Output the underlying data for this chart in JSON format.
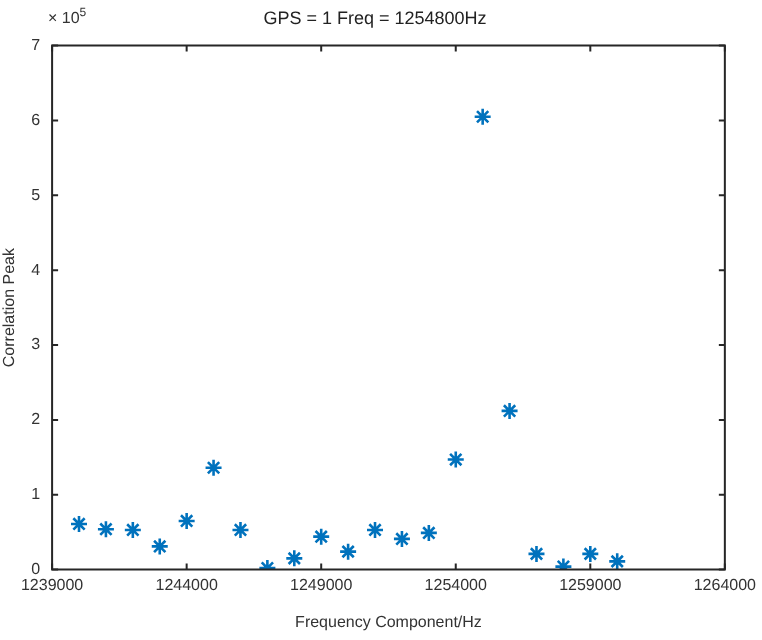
{
  "chart_data": {
    "type": "scatter",
    "title": "GPS = 1 Freq = 1254800Hz",
    "xlabel": "Frequency Component/Hz",
    "ylabel": "Correlation Peak",
    "x": [
      1240000,
      1241000,
      1242000,
      1243000,
      1244000,
      1245000,
      1246000,
      1247000,
      1248000,
      1249000,
      1250000,
      1251000,
      1252000,
      1253000,
      1254000,
      1255000,
      1256000,
      1257000,
      1258000,
      1259000,
      1260000
    ],
    "series": [
      {
        "color": "#0072bd",
        "values": [
          0.61,
          0.54,
          0.53,
          0.31,
          0.65,
          1.36,
          0.53,
          0.02,
          0.15,
          0.44,
          0.24,
          0.53,
          0.41,
          0.49,
          1.47,
          6.05,
          2.12,
          0.21,
          0.04,
          0.21,
          0.11
        ]
      }
    ],
    "marker": "cross",
    "grid": false,
    "legend": false,
    "xlim": [
      1239000,
      1264000
    ],
    "xticks": [
      1239000,
      1244000,
      1249000,
      1254000,
      1259000,
      1264000
    ],
    "ylim": [
      0,
      7
    ],
    "yticks": [
      0,
      1,
      2,
      3,
      4,
      5,
      6,
      7
    ],
    "annotations": [
      "× 10$^{5}$"
    ]
  }
}
